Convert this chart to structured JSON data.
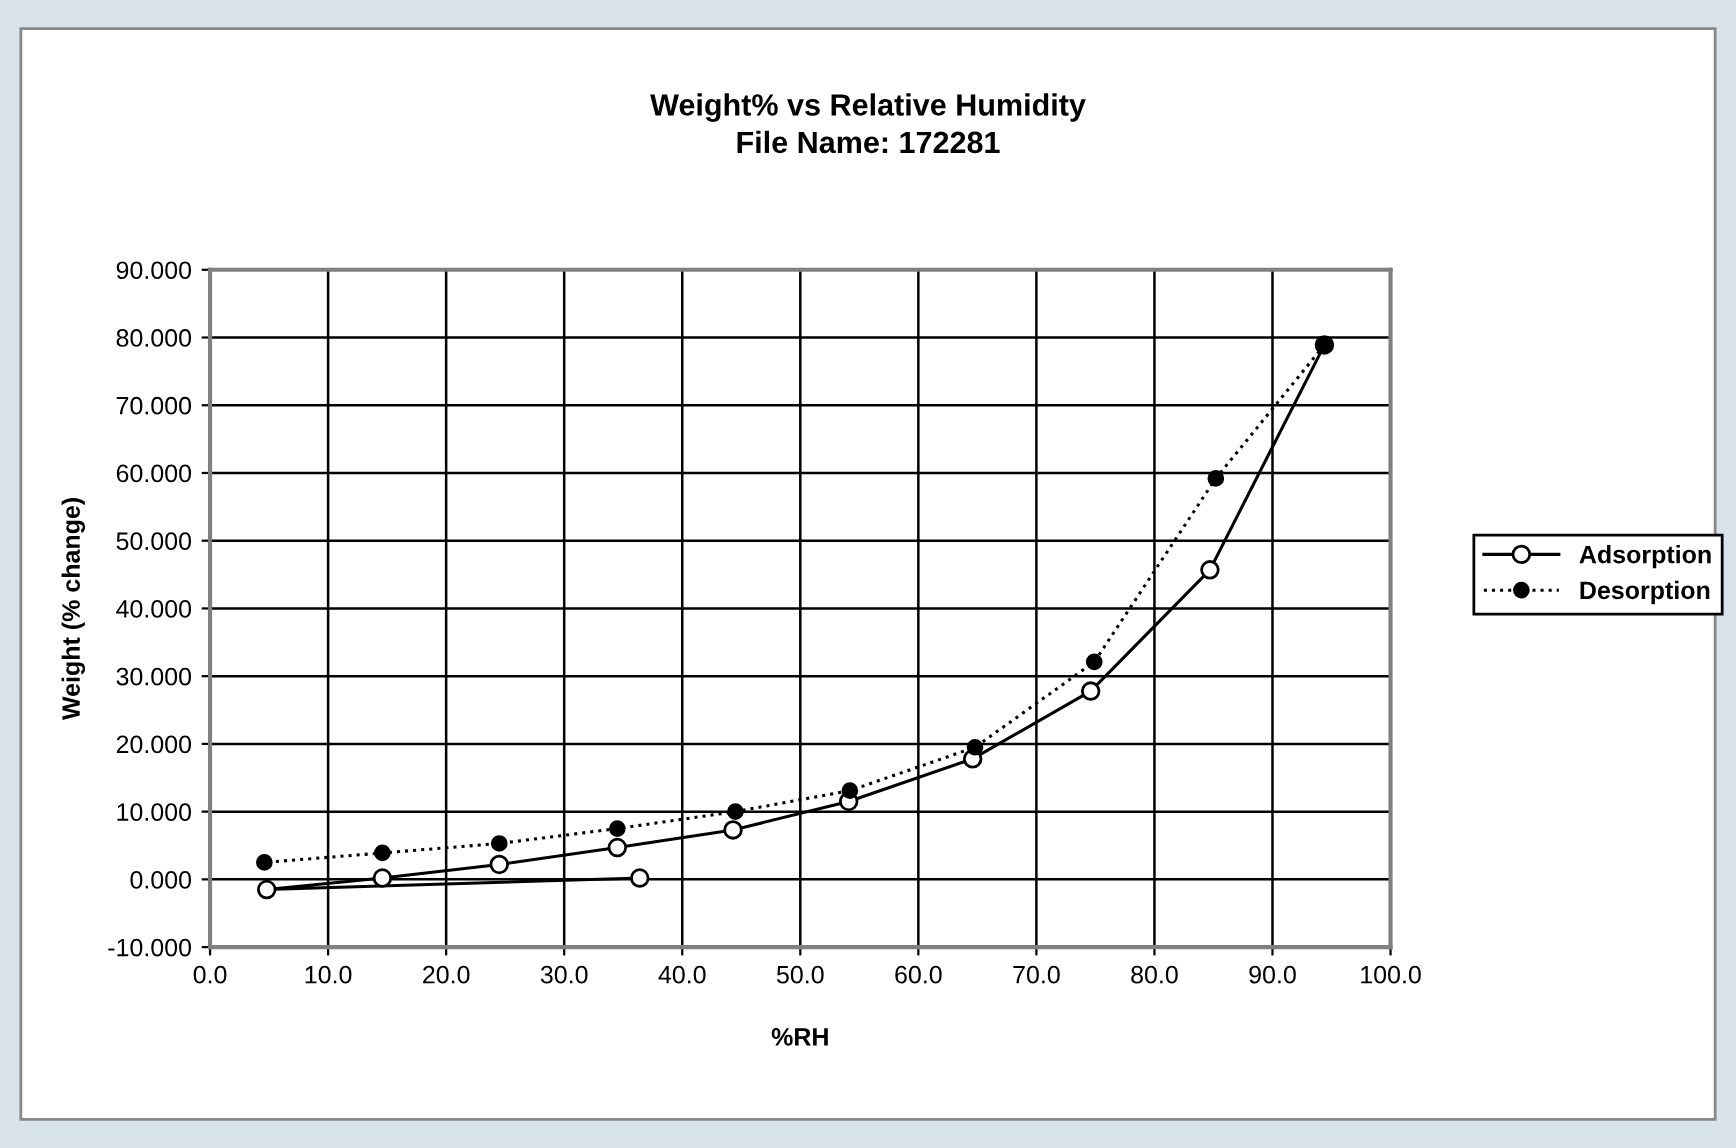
{
  "chart_data": {
    "type": "line",
    "title": "Weight% vs Relative Humidity\nFile Name: 172281",
    "xlabel": "%RH",
    "ylabel": "Weight (% change)",
    "series": [
      {
        "name": "Adsorption",
        "color": "#000000",
        "marker": "circle",
        "line_style": "solid",
        "x": [
          36.4,
          4.8,
          14.6,
          24.5,
          34.5,
          44.3,
          54.1,
          64.6,
          74.6,
          84.7,
          94.4
        ],
        "values": [
          0.2,
          -1.5,
          0.2,
          2.2,
          4.7,
          7.3,
          11.5,
          17.8,
          27.8,
          45.7,
          78.9
        ]
      },
      {
        "name": "Desorption",
        "color": "#000000",
        "marker": "circle",
        "line_style": "dotted",
        "x": [
          94.4,
          85.2,
          74.9,
          64.8,
          54.2,
          44.5,
          34.5,
          24.5,
          14.6,
          4.6
        ],
        "values": [
          78.9,
          59.2,
          32.1,
          19.5,
          13.1,
          10.0,
          7.5,
          5.3,
          3.9,
          2.5
        ]
      }
    ],
    "xlim": [
      0,
      100
    ],
    "ylim": [
      -10,
      90
    ],
    "xticks": [
      {
        "value": 0,
        "label": "0.0"
      },
      {
        "value": 10,
        "label": "10.0"
      },
      {
        "value": 20,
        "label": "20.0"
      },
      {
        "value": 30,
        "label": "30.0"
      },
      {
        "value": 40,
        "label": "40.0"
      },
      {
        "value": 50,
        "label": "50.0"
      },
      {
        "value": 60,
        "label": "60.0"
      },
      {
        "value": 70,
        "label": "70.0"
      },
      {
        "value": 80,
        "label": "80.0"
      },
      {
        "value": 90,
        "label": "90.0"
      },
      {
        "value": 100,
        "label": "100.0"
      }
    ],
    "yticks": [
      {
        "value": -10,
        "label": "-10.000"
      },
      {
        "value": 0,
        "label": "0.000"
      },
      {
        "value": 10,
        "label": "10.000"
      },
      {
        "value": 20,
        "label": "20.000"
      },
      {
        "value": 30,
        "label": "30.000"
      },
      {
        "value": 40,
        "label": "40.000"
      },
      {
        "value": 50,
        "label": "50.000"
      },
      {
        "value": 60,
        "label": "60.000"
      },
      {
        "value": 70,
        "label": "70.000"
      },
      {
        "value": 80,
        "label": "80.000"
      },
      {
        "value": 90,
        "label": "90.000"
      }
    ],
    "grid": true,
    "legend": "right"
  }
}
